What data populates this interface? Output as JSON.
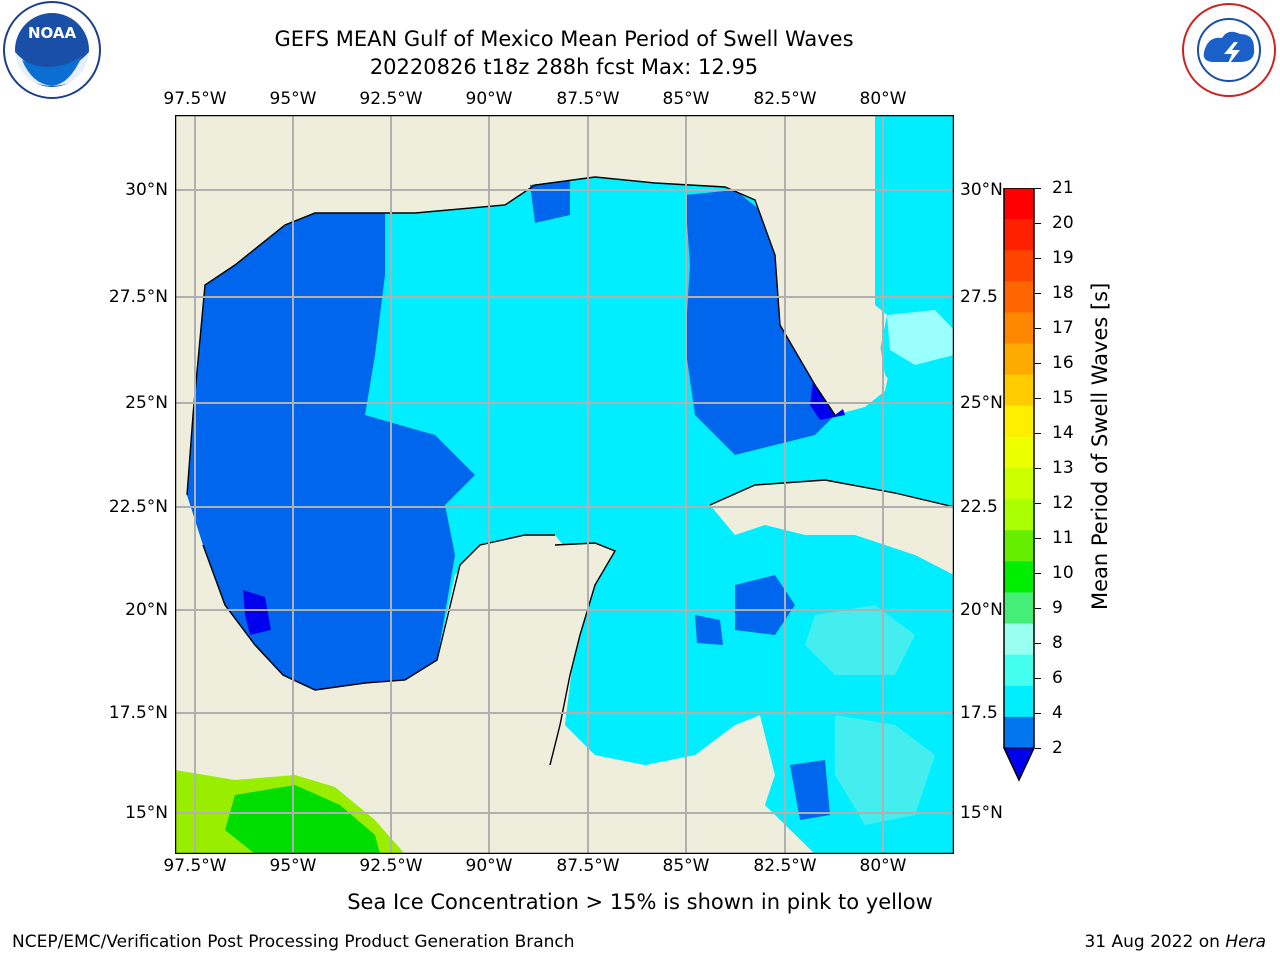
{
  "header": {
    "title_line1": "GEFS MEAN Gulf of Mexico Mean Period of Swell Waves",
    "title_line2": "20220826 t18z 288h fcst   Max: 12.95"
  },
  "logos": {
    "left": {
      "icon": "noaa-logo",
      "text": "NOAA",
      "ring_text": "NATIONAL OCEANIC AND ATMOSPHERIC ADMINISTRATION · U.S. DEPARTMENT OF COMMERCE"
    },
    "right": {
      "icon": "nws-logo",
      "ring_text": "NATIONAL WEATHER SERVICE"
    }
  },
  "map": {
    "lon_labels": [
      "97.5°W",
      "95°W",
      "92.5°W",
      "90°W",
      "87.5°W",
      "85°W",
      "82.5°W",
      "80°W"
    ],
    "lat_labels_left": [
      "30°N",
      "27.5°N",
      "25°N",
      "22.5°N",
      "20°N",
      "17.5°N",
      "15°N"
    ],
    "lat_labels_right": [
      "30°N",
      "27.5",
      "25°N",
      "22.5",
      "20°N",
      "17.5",
      "15°N"
    ],
    "colors": {
      "land": "#efeedd",
      "deep_blue": "#0000ee",
      "blue": "#0066ee",
      "cyan": "#00eeff",
      "light_cyan": "#44eeee",
      "pale_cyan": "#99ffff",
      "green": "#00dd00",
      "yellow_green": "#99ee00",
      "grid": "#b0b0b0"
    }
  },
  "colorbar": {
    "label": "Mean Period of Swell Waves [s]",
    "ticks": [
      "21",
      "20",
      "19",
      "18",
      "17",
      "16",
      "15",
      "14",
      "13",
      "12",
      "11",
      "10",
      "9",
      "8",
      "6",
      "4",
      "2"
    ],
    "colors": [
      "#ff0000",
      "#ff2000",
      "#ff4400",
      "#ff6600",
      "#ff8800",
      "#ffaa00",
      "#ffcc00",
      "#ffee00",
      "#eeff00",
      "#ccff00",
      "#aaff00",
      "#66ee00",
      "#00ee00",
      "#44ee77",
      "#99ffee",
      "#44ffee",
      "#00eeff",
      "#0077ee"
    ],
    "extend_color": "#0000ee"
  },
  "footer": {
    "note": "Sea Ice Concentration > 15% is shown in pink to yellow",
    "left": "NCEP/EMC/Verification Post Processing Product Generation Branch",
    "date": "31 Aug 2022 on ",
    "host": "Hera"
  }
}
